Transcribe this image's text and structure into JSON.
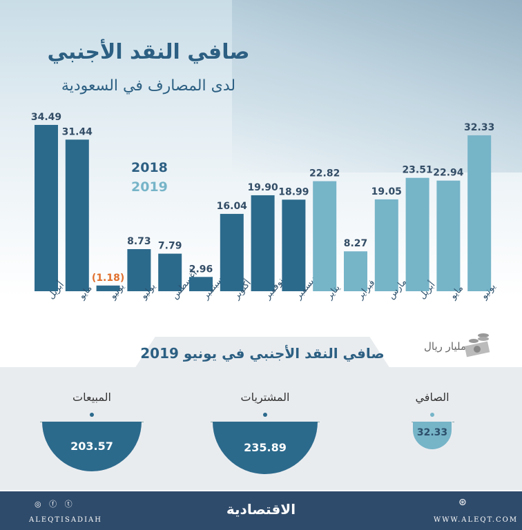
{
  "header": {
    "title": "صافي النقد الأجنبي",
    "subtitle": "لدى المصارف في السعودية"
  },
  "chart_data": {
    "type": "bar",
    "categories": [
      "أبريل",
      "مايو",
      "يونيو",
      "يوليو",
      "أغسطس",
      "سبتمبر",
      "أكتوبر",
      "نوفمبر",
      "ديسمبر",
      "يناير",
      "فبراير",
      "مارس",
      "أبريل",
      "مايو",
      "يونيو"
    ],
    "values": [
      34.49,
      31.44,
      -1.18,
      8.73,
      7.79,
      2.96,
      16.04,
      19.9,
      18.99,
      22.82,
      8.27,
      19.05,
      23.51,
      22.94,
      32.33
    ],
    "labels": [
      "34.49",
      "31.44",
      "(1.18)",
      "8.73",
      "7.79",
      "2.96",
      "16.04",
      "19.90",
      "18.99",
      "22.82",
      "8.27",
      "19.05",
      "23.51",
      "22.94",
      "32.33"
    ],
    "years": [
      "2018",
      "2018",
      "2018",
      "2018",
      "2018",
      "2018",
      "2018",
      "2018",
      "2018",
      "2019",
      "2019",
      "2019",
      "2019",
      "2019",
      "2019"
    ],
    "legend": [
      "2018",
      "2019"
    ],
    "colors": {
      "2018": "#2c6a8c",
      "2019": "#76b4c8",
      "negative": "#e0702e"
    },
    "unit": "مليار ريال",
    "ylim": [
      0,
      35
    ],
    "grid": false,
    "legend_placement": "top-left"
  },
  "summary": {
    "title": "صافي النقد الأجنبي في يونيو 2019",
    "items": [
      {
        "label": "المبيعات",
        "value": "203.57"
      },
      {
        "label": "المشتريات",
        "value": "235.89"
      },
      {
        "label": "الصافي",
        "value": "32.33"
      }
    ]
  },
  "footer": {
    "social": "ALEQTISADIAH",
    "logo": "الاقتصادية",
    "website": "WWW.ALEQT.COM"
  }
}
